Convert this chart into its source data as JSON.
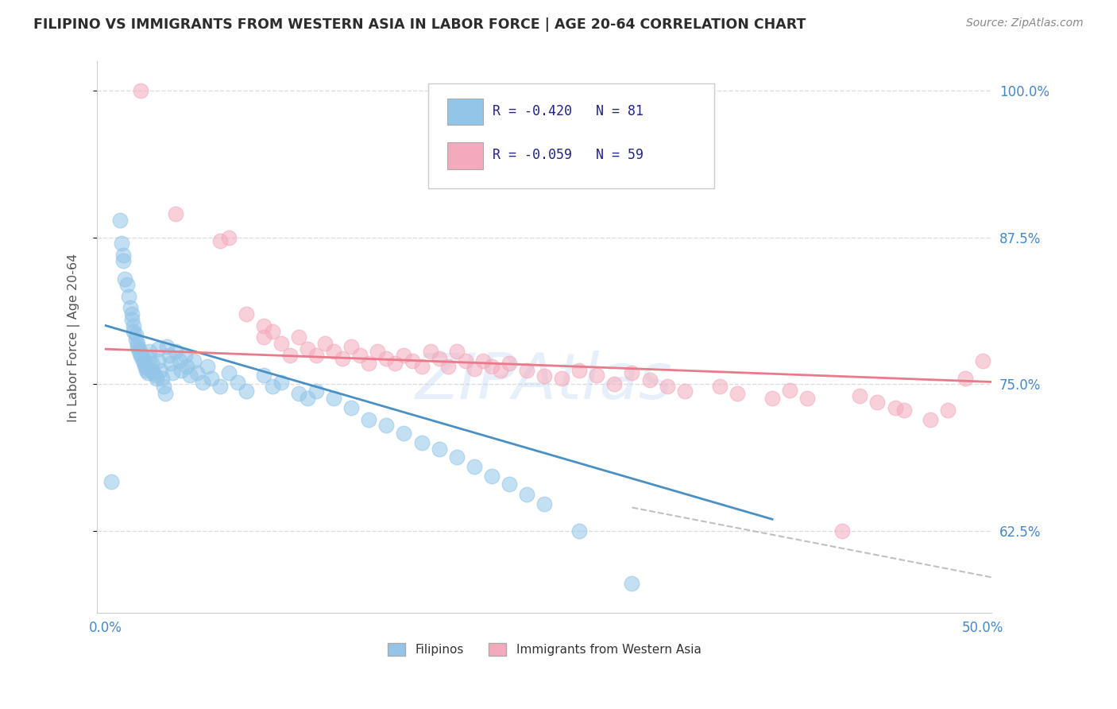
{
  "title": "FILIPINO VS IMMIGRANTS FROM WESTERN ASIA IN LABOR FORCE | AGE 20-64 CORRELATION CHART",
  "source": "Source: ZipAtlas.com",
  "ylabel": "In Labor Force | Age 20-64",
  "xlim": [
    -0.005,
    0.505
  ],
  "ylim": [
    0.555,
    1.025
  ],
  "xticks": [
    0.0,
    0.05,
    0.1,
    0.15,
    0.2,
    0.25,
    0.3,
    0.35,
    0.4,
    0.45,
    0.5
  ],
  "yticks": [
    0.625,
    0.75,
    0.875,
    1.0
  ],
  "ytick_labels": [
    "62.5%",
    "75.0%",
    "87.5%",
    "100.0%"
  ],
  "xtick_labels": [
    "0.0%",
    "",
    "",
    "",
    "",
    "",
    "",
    "",
    "",
    "",
    "50.0%"
  ],
  "legend_r1": "R = -0.420",
  "legend_n1": "N = 81",
  "legend_r2": "R = -0.059",
  "legend_n2": "N = 59",
  "blue_color": "#92C5E8",
  "pink_color": "#F4AABC",
  "blue_line_color": "#4A90C4",
  "pink_line_color": "#E87A8A",
  "dashed_line_color": "#C0C0C0",
  "background_color": "#FFFFFF",
  "grid_color": "#DDDDDD",
  "title_color": "#2C2C2C",
  "axis_label_color": "#555555",
  "tick_label_color": "#4488CC",
  "legend_text_color": "#222288",
  "blue_scatter_x": [
    0.003,
    0.008,
    0.009,
    0.01,
    0.01,
    0.011,
    0.012,
    0.013,
    0.014,
    0.015,
    0.015,
    0.016,
    0.016,
    0.017,
    0.017,
    0.018,
    0.018,
    0.019,
    0.019,
    0.02,
    0.02,
    0.021,
    0.021,
    0.022,
    0.022,
    0.023,
    0.023,
    0.024,
    0.025,
    0.025,
    0.026,
    0.026,
    0.027,
    0.028,
    0.029,
    0.03,
    0.03,
    0.031,
    0.032,
    0.033,
    0.034,
    0.035,
    0.036,
    0.037,
    0.038,
    0.04,
    0.042,
    0.043,
    0.045,
    0.046,
    0.048,
    0.05,
    0.052,
    0.055,
    0.058,
    0.06,
    0.065,
    0.07,
    0.075,
    0.08,
    0.09,
    0.095,
    0.1,
    0.11,
    0.115,
    0.12,
    0.13,
    0.14,
    0.15,
    0.16,
    0.17,
    0.18,
    0.19,
    0.2,
    0.21,
    0.22,
    0.23,
    0.24,
    0.25,
    0.27,
    0.3
  ],
  "blue_scatter_y": [
    0.667,
    0.89,
    0.87,
    0.86,
    0.855,
    0.84,
    0.835,
    0.825,
    0.815,
    0.81,
    0.805,
    0.8,
    0.795,
    0.792,
    0.788,
    0.785,
    0.782,
    0.78,
    0.778,
    0.776,
    0.774,
    0.772,
    0.77,
    0.768,
    0.766,
    0.764,
    0.762,
    0.76,
    0.778,
    0.772,
    0.768,
    0.762,
    0.76,
    0.758,
    0.755,
    0.78,
    0.77,
    0.762,
    0.755,
    0.748,
    0.742,
    0.782,
    0.775,
    0.768,
    0.76,
    0.778,
    0.77,
    0.762,
    0.775,
    0.765,
    0.758,
    0.77,
    0.76,
    0.752,
    0.765,
    0.755,
    0.748,
    0.76,
    0.752,
    0.744,
    0.758,
    0.748,
    0.752,
    0.742,
    0.738,
    0.744,
    0.738,
    0.73,
    0.72,
    0.715,
    0.708,
    0.7,
    0.695,
    0.688,
    0.68,
    0.672,
    0.665,
    0.656,
    0.648,
    0.625,
    0.58
  ],
  "pink_scatter_x": [
    0.02,
    0.04,
    0.065,
    0.07,
    0.08,
    0.09,
    0.09,
    0.095,
    0.1,
    0.105,
    0.11,
    0.115,
    0.12,
    0.125,
    0.13,
    0.135,
    0.14,
    0.145,
    0.15,
    0.155,
    0.16,
    0.165,
    0.17,
    0.175,
    0.18,
    0.185,
    0.19,
    0.195,
    0.2,
    0.205,
    0.21,
    0.215,
    0.22,
    0.225,
    0.23,
    0.24,
    0.25,
    0.26,
    0.27,
    0.28,
    0.29,
    0.3,
    0.31,
    0.32,
    0.33,
    0.35,
    0.36,
    0.38,
    0.39,
    0.4,
    0.42,
    0.43,
    0.44,
    0.45,
    0.455,
    0.47,
    0.48,
    0.49,
    0.5
  ],
  "pink_scatter_y": [
    1.0,
    0.895,
    0.872,
    0.875,
    0.81,
    0.8,
    0.79,
    0.795,
    0.785,
    0.775,
    0.79,
    0.78,
    0.775,
    0.785,
    0.778,
    0.772,
    0.782,
    0.775,
    0.768,
    0.778,
    0.772,
    0.768,
    0.775,
    0.77,
    0.765,
    0.778,
    0.772,
    0.765,
    0.778,
    0.77,
    0.763,
    0.77,
    0.765,
    0.762,
    0.768,
    0.762,
    0.757,
    0.755,
    0.762,
    0.758,
    0.75,
    0.76,
    0.754,
    0.748,
    0.744,
    0.748,
    0.742,
    0.738,
    0.745,
    0.738,
    0.625,
    0.74,
    0.735,
    0.73,
    0.728,
    0.72,
    0.728,
    0.755,
    0.77
  ],
  "blue_line_x": [
    0.0,
    0.38
  ],
  "blue_line_y": [
    0.8,
    0.635
  ],
  "pink_line_x": [
    0.0,
    0.505
  ],
  "pink_line_y": [
    0.78,
    0.752
  ],
  "dashed_line_x": [
    0.3,
    0.8
  ],
  "dashed_line_y": [
    0.645,
    0.5
  ]
}
